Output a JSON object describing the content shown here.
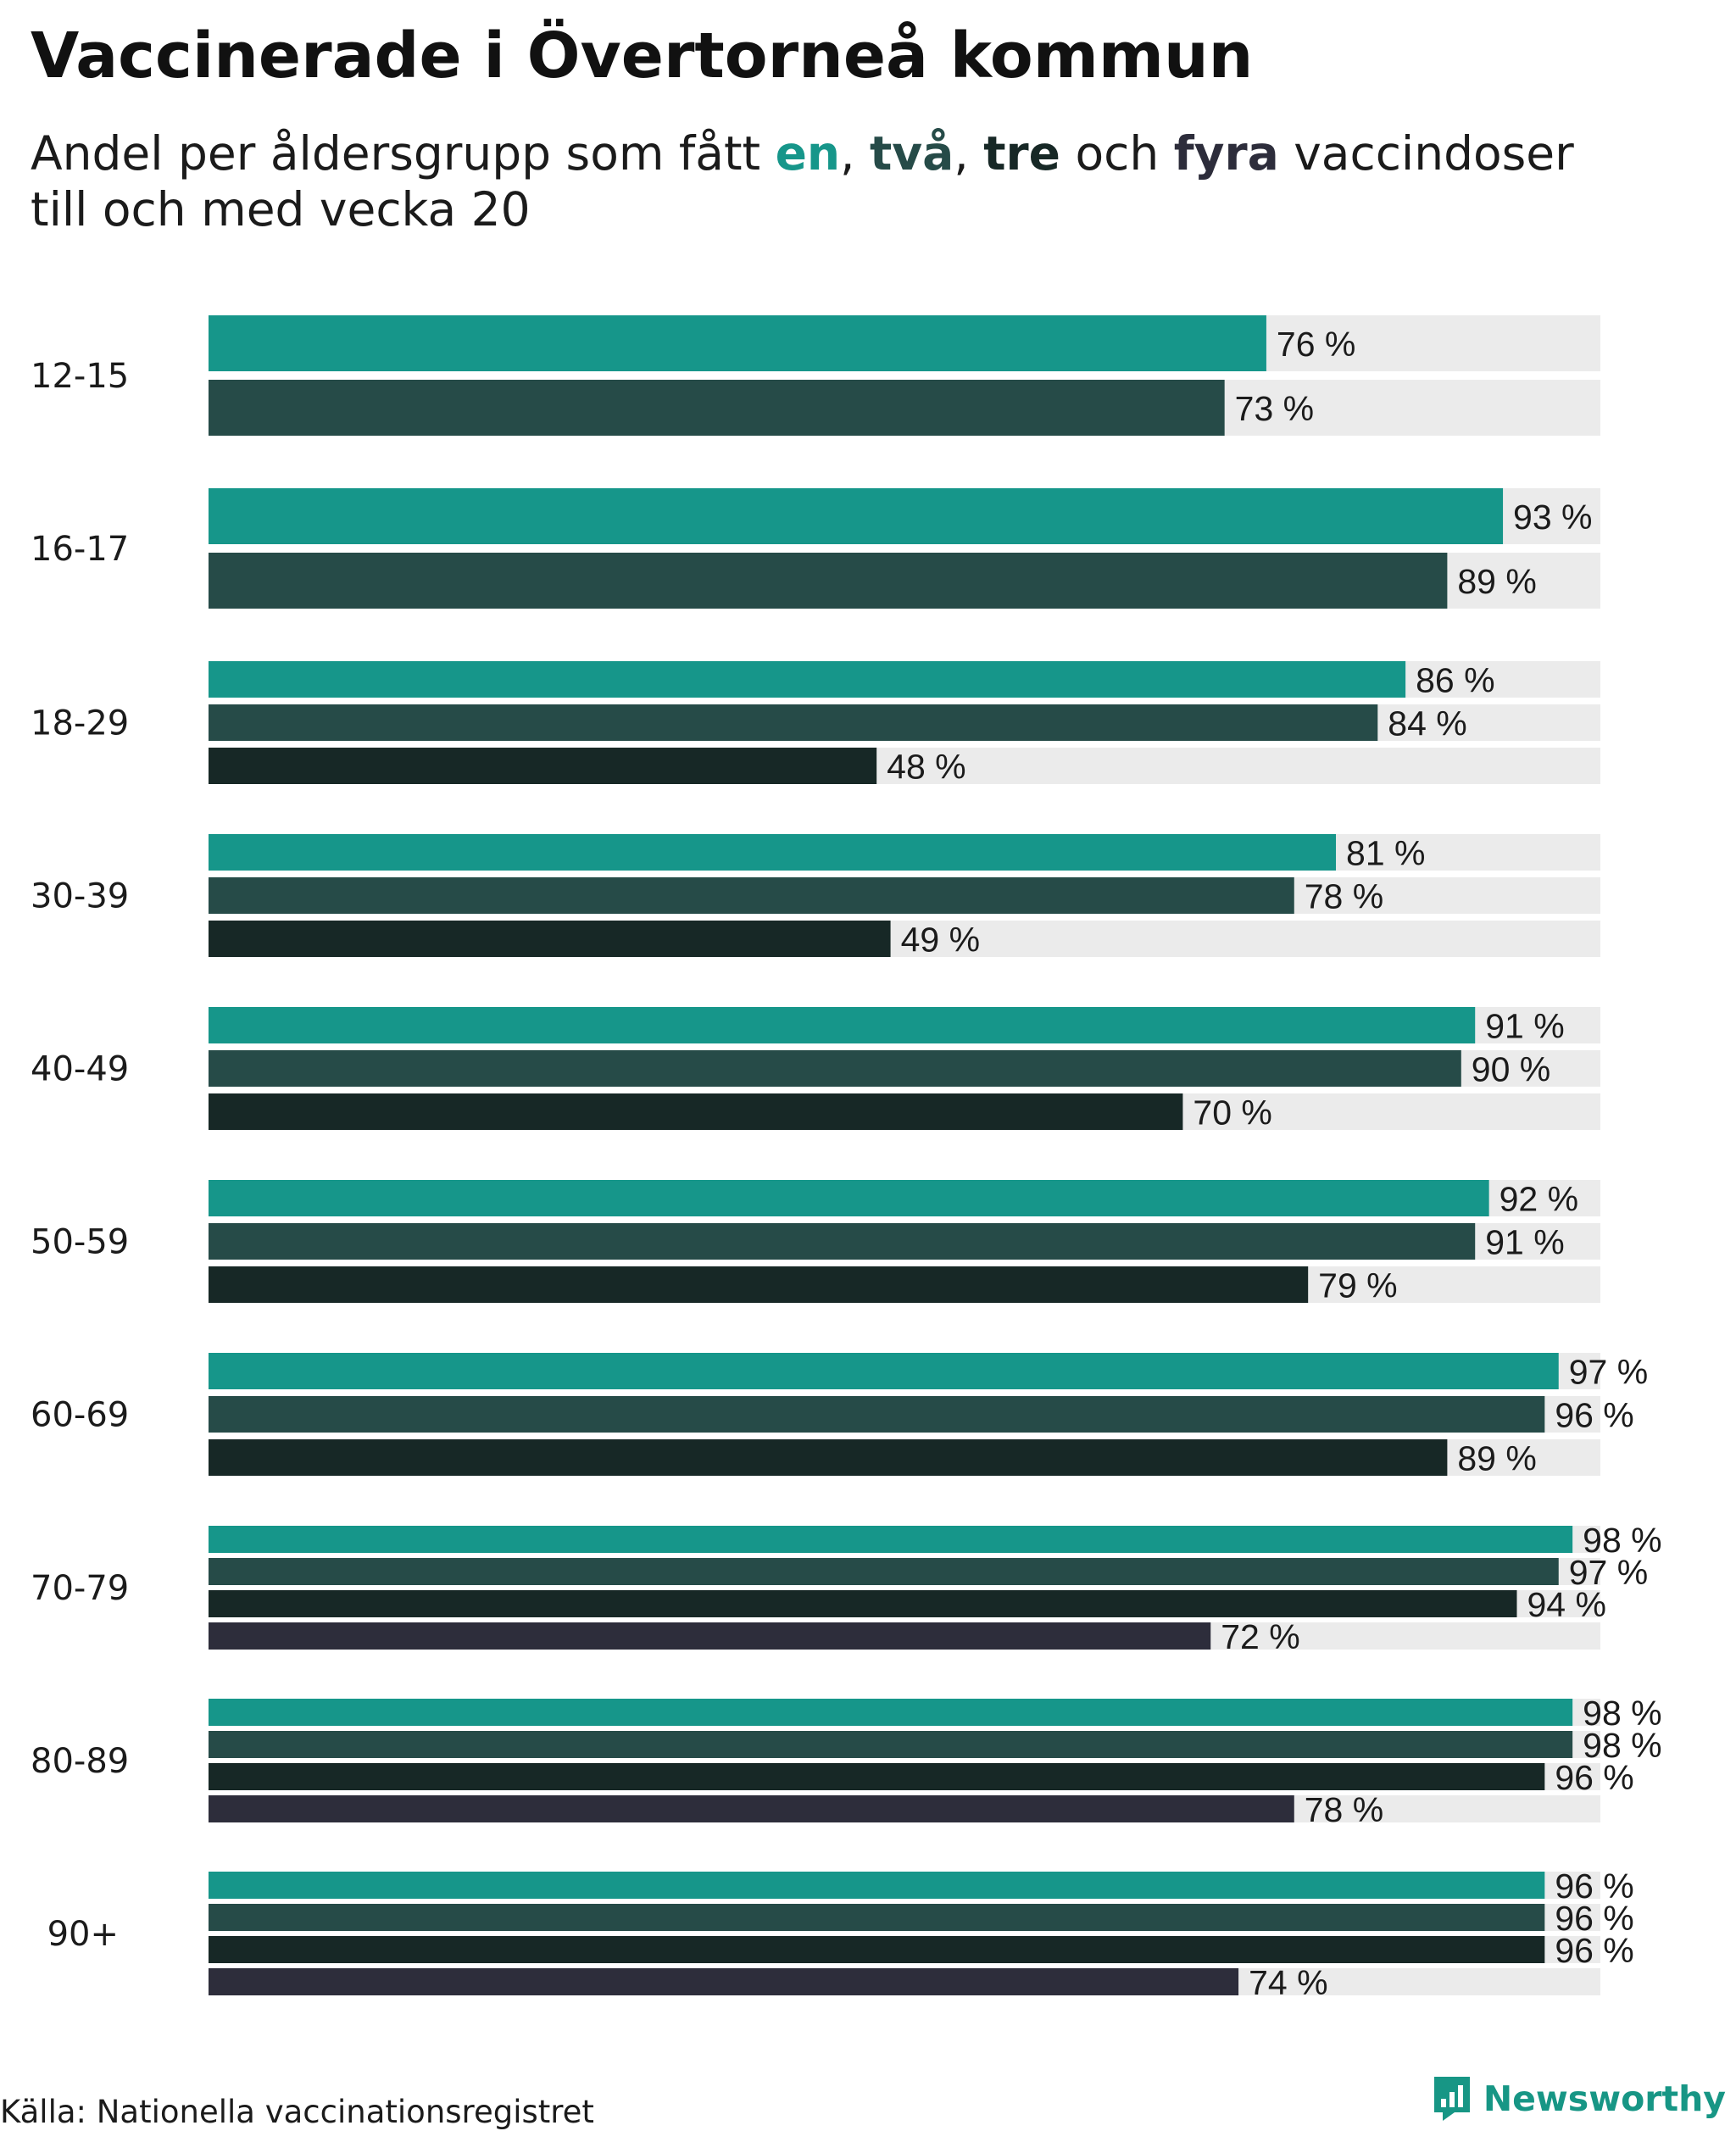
{
  "title": "Vaccinerade i Övertorneå kommun",
  "subtitle": {
    "before": "Andel per åldersgrupp som fått ",
    "k1": "en",
    "sep1": ", ",
    "k2": "två",
    "sep2": ", ",
    "k3": "tre",
    "mid": " och ",
    "k4": "fyra",
    "after": " vaccindoser",
    "line2": "till och med vecka 20"
  },
  "colors": {
    "en": "#16968a",
    "tva": "#264b48",
    "tre": "#172826",
    "fyra": "#2d2d3b",
    "track": "#ebebeb"
  },
  "chart_data": {
    "type": "bar",
    "orientation": "horizontal",
    "xlim": [
      0,
      100
    ],
    "value_suffix": " %",
    "categories": [
      "12-15",
      "16-17",
      "18-29",
      "30-39",
      "40-49",
      "50-59",
      "60-69",
      "70-79",
      "80-89",
      "90+"
    ],
    "series": [
      {
        "name": "en",
        "color": "#16968a",
        "values": [
          76,
          93,
          86,
          81,
          91,
          92,
          97,
          98,
          98,
          96
        ]
      },
      {
        "name": "två",
        "color": "#264b48",
        "values": [
          73,
          89,
          84,
          78,
          90,
          91,
          96,
          97,
          98,
          96
        ]
      },
      {
        "name": "tre",
        "color": "#172826",
        "values": [
          null,
          null,
          48,
          49,
          70,
          79,
          89,
          94,
          96,
          96
        ]
      },
      {
        "name": "fyra",
        "color": "#2d2d3b",
        "values": [
          null,
          null,
          null,
          null,
          null,
          null,
          null,
          72,
          78,
          74
        ]
      }
    ]
  },
  "source": "Källa: Nationella vaccinationsregistret",
  "brand": {
    "name": "Newsworthy",
    "icon": "newsworthy-logo-icon"
  }
}
